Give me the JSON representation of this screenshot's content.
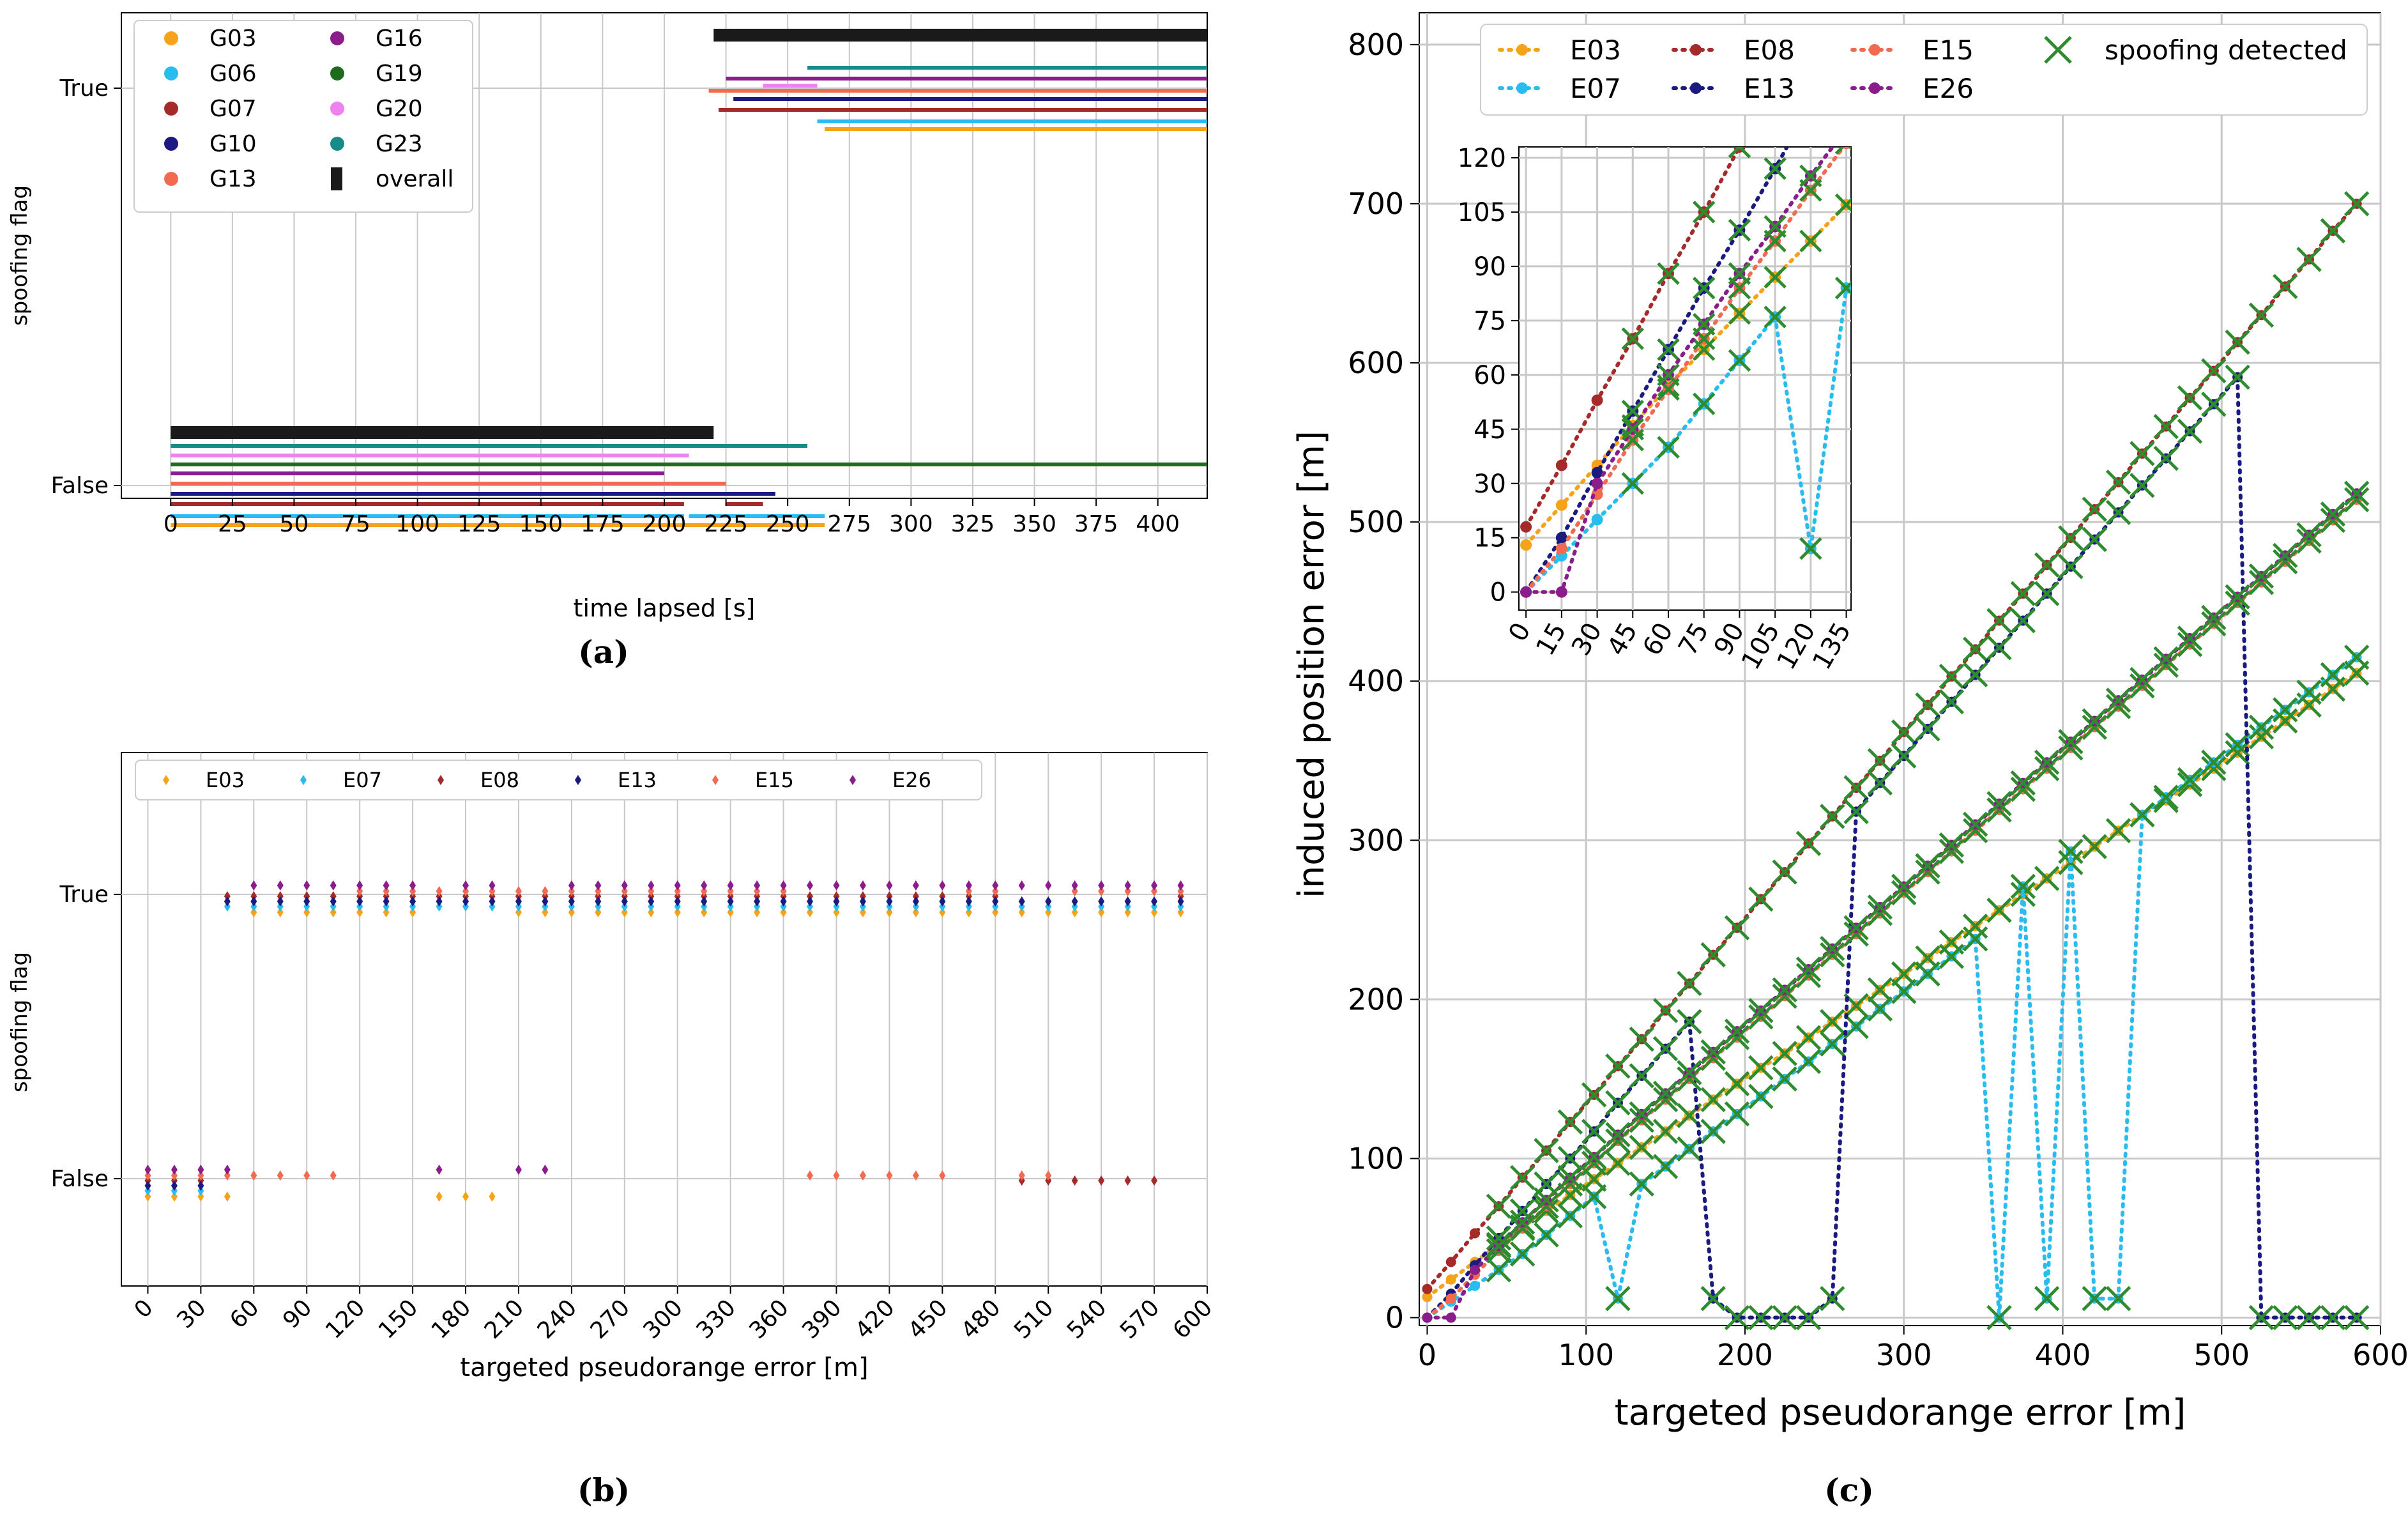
{
  "colors": {
    "G03": "#F5A31A",
    "G06": "#29BDEF",
    "G07": "#A52A2A",
    "G10": "#1A1A80",
    "G13": "#F26B50",
    "G16": "#8B1C8B",
    "G19": "#1E6B1E",
    "G20": "#EE82EE",
    "G23": "#178A8A",
    "overall": "#1A1A1A",
    "E03": "#F5A31A",
    "E07": "#29BDEF",
    "E08": "#A52A2A",
    "E13": "#1A1A80",
    "E15": "#F26B50",
    "E26": "#8B1C8B",
    "spoof": "#2E8B2E"
  },
  "panel_labels": {
    "a": "(a)",
    "b": "(b)",
    "c": "(c)"
  },
  "chart_data": [
    {
      "id": "a",
      "type": "scatter",
      "title": "",
      "xlabel": "time lapsed [s]",
      "ylabel": "spoofing flag",
      "xlim": [
        -20,
        420
      ],
      "xticks": [
        0,
        25,
        50,
        75,
        100,
        125,
        150,
        175,
        200,
        225,
        250,
        275,
        300,
        325,
        350,
        375,
        400
      ],
      "yticks": [
        "True",
        "False"
      ],
      "grid": true,
      "legend_position": "top-left",
      "legend": [
        "G03",
        "G06",
        "G07",
        "G10",
        "G13",
        "G16",
        "G19",
        "G20",
        "G23",
        "overall"
      ],
      "series": [
        {
          "name": "G03",
          "state_true": [
            [
              265,
              420
            ]
          ],
          "state_false": [
            [
              0,
              265
            ]
          ]
        },
        {
          "name": "G06",
          "state_true": [
            [
              262,
              420
            ]
          ],
          "state_false": [
            [
              0,
              208
            ],
            [
              210,
              265
            ]
          ]
        },
        {
          "name": "G07",
          "state_true": [
            [
              222,
              420
            ]
          ],
          "state_false": [
            [
              0,
              208
            ],
            [
              225,
              240
            ]
          ]
        },
        {
          "name": "G10",
          "state_true": [
            [
              228,
              420
            ]
          ],
          "state_false": [
            [
              0,
              245
            ]
          ]
        },
        {
          "name": "G13",
          "state_true": [
            [
              218,
              420
            ]
          ],
          "state_false": [
            [
              0,
              225
            ]
          ]
        },
        {
          "name": "G16",
          "state_true": [
            [
              225,
              420
            ]
          ],
          "state_false": [
            [
              0,
              200
            ]
          ]
        },
        {
          "name": "G19",
          "state_true": [],
          "state_false": [
            [
              0,
              420
            ]
          ]
        },
        {
          "name": "G20",
          "state_true": [
            [
              240,
              262
            ]
          ],
          "state_false": [
            [
              0,
              210
            ]
          ]
        },
        {
          "name": "G23",
          "state_true": [
            [
              258,
              420
            ]
          ],
          "state_false": [
            [
              0,
              258
            ]
          ]
        },
        {
          "name": "overall",
          "state_true": [
            [
              220,
              420
            ]
          ],
          "state_false": [
            [
              0,
              220
            ]
          ]
        }
      ]
    },
    {
      "id": "b",
      "type": "scatter",
      "title": "",
      "xlabel": "targeted pseudorange error [m]",
      "ylabel": "spoofing flag",
      "xlim": [
        -15,
        600
      ],
      "xticks": [
        0,
        30,
        60,
        90,
        120,
        150,
        180,
        210,
        240,
        270,
        300,
        330,
        360,
        390,
        420,
        450,
        480,
        510,
        540,
        570,
        600
      ],
      "yticks": [
        "True",
        "False"
      ],
      "grid": true,
      "legend_position": "top-left",
      "legend": [
        "E03",
        "E07",
        "E08",
        "E13",
        "E15",
        "E26"
      ],
      "step": 15,
      "series": [
        {
          "name": "E03",
          "false_at": [
            0,
            15,
            30,
            45,
            165,
            180,
            195
          ]
        },
        {
          "name": "E07",
          "false_at": [
            0,
            15,
            30
          ]
        },
        {
          "name": "E08",
          "false_at": [
            0,
            15,
            30,
            495,
            510,
            525,
            540,
            555,
            570
          ]
        },
        {
          "name": "E13",
          "false_at": [
            0,
            15,
            30
          ]
        },
        {
          "name": "E15",
          "false_at": [
            0,
            15,
            30,
            45,
            60,
            75,
            90,
            105,
            375,
            390,
            405,
            420,
            435,
            450,
            495,
            510
          ]
        },
        {
          "name": "E26",
          "false_at": [
            0,
            15,
            30,
            45,
            165,
            210,
            225
          ]
        }
      ]
    },
    {
      "id": "c",
      "type": "line",
      "title": "",
      "xlabel": "targeted pseudorange error [m]",
      "ylabel": "induced position error [m]",
      "xlim": [
        -5,
        600
      ],
      "ylim": [
        -5,
        820
      ],
      "xticks": [
        0,
        100,
        200,
        300,
        400,
        500,
        600
      ],
      "yticks": [
        0,
        100,
        200,
        300,
        400,
        500,
        600,
        700,
        800
      ],
      "grid": true,
      "legend_position": "top-right",
      "legend": [
        "E03",
        "E07",
        "E08",
        "E13",
        "E15",
        "E26",
        "spoofing detected"
      ],
      "step": 15,
      "series": [
        {
          "name": "E03",
          "values": [
            13,
            24,
            35,
            46,
            57,
            67,
            77,
            87,
            97,
            107,
            117,
            127,
            137,
            147,
            157,
            166,
            176,
            186,
            196,
            206,
            216,
            226,
            236,
            246,
            256,
            266,
            276,
            286,
            296,
            306,
            316,
            325,
            335,
            345,
            355,
            365,
            375,
            385,
            395,
            405
          ]
        },
        {
          "name": "E07",
          "values": [
            0,
            10,
            20,
            30,
            40,
            52,
            64,
            76,
            12,
            84,
            95,
            106,
            117,
            128,
            139,
            150,
            161,
            172,
            183,
            194,
            205,
            216,
            227,
            238,
            0,
            271,
            12,
            293,
            12,
            12,
            316,
            327,
            338,
            349,
            360,
            371,
            382,
            393,
            404,
            415
          ]
        },
        {
          "name": "E08",
          "values": [
            18,
            35,
            53,
            70,
            88,
            105,
            123,
            140,
            158,
            175,
            193,
            210,
            228,
            245,
            263,
            280,
            298,
            315,
            333,
            350,
            368,
            385,
            403,
            420,
            438,
            455,
            473,
            490,
            508,
            525,
            543,
            560,
            578,
            595,
            613,
            630,
            648,
            665,
            683,
            700
          ]
        },
        {
          "name": "E13",
          "values": [
            0,
            15,
            33,
            50,
            67,
            84,
            100,
            117,
            135,
            152,
            169,
            186,
            12,
            0,
            0,
            0,
            0,
            12,
            318,
            336,
            353,
            370,
            387,
            404,
            421,
            438,
            455,
            472,
            489,
            506,
            523,
            540,
            557,
            574,
            591,
            0,
            0,
            0,
            0,
            0
          ]
        },
        {
          "name": "E15",
          "values": [
            0,
            12,
            27,
            42,
            56,
            70,
            84,
            97,
            111,
            124,
            137,
            150,
            163,
            176,
            189,
            202,
            215,
            228,
            241,
            254,
            267,
            280,
            293,
            306,
            319,
            332,
            345,
            358,
            371,
            384,
            397,
            410,
            423,
            436,
            449,
            462,
            475,
            488,
            501,
            514
          ]
        },
        {
          "name": "E26",
          "values": [
            0,
            0,
            30,
            45,
            60,
            74,
            88,
            101,
            115,
            128,
            141,
            154,
            167,
            180,
            193,
            206,
            219,
            232,
            245,
            258,
            271,
            284,
            297,
            310,
            323,
            336,
            349,
            362,
            375,
            388,
            401,
            414,
            427,
            440,
            453,
            466,
            479,
            492,
            505,
            518
          ]
        }
      ],
      "inset": {
        "xlim": [
          -3,
          137
        ],
        "ylim": [
          -5,
          123
        ],
        "xticks": [
          0,
          15,
          30,
          45,
          60,
          75,
          90,
          105,
          120,
          135
        ],
        "yticks": [
          0,
          15,
          30,
          45,
          60,
          75,
          90,
          105,
          120
        ]
      }
    }
  ]
}
